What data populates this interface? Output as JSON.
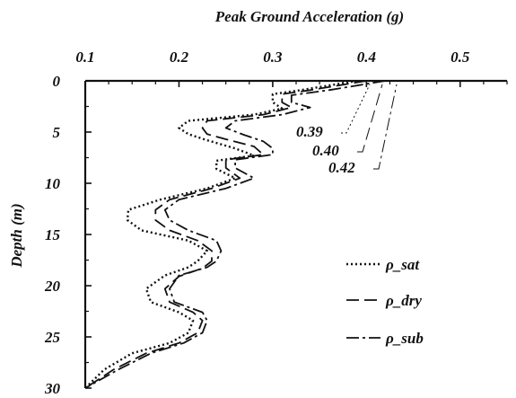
{
  "chart_data": {
    "type": "line",
    "title": "Peak Ground Acceleration  (g)",
    "xlabel": "Peak Ground Acceleration  (g)",
    "ylabel": "Depth (m)",
    "xlim": [
      0.1,
      0.55
    ],
    "ylim": [
      0,
      30
    ],
    "y_inverted": true,
    "x_axis_position": "top",
    "x_ticks": [
      "0.1",
      "0.2",
      "0.3",
      "0.4",
      "0.5"
    ],
    "x_tick_values": [
      0.1,
      0.2,
      0.3,
      0.4,
      0.5
    ],
    "y_ticks": [
      "0",
      "5",
      "10",
      "15",
      "20",
      "25",
      "30"
    ],
    "y_tick_values": [
      0,
      5,
      10,
      15,
      20,
      25,
      30
    ],
    "grid": false,
    "legend_position": "right",
    "series": [
      {
        "name": "ρ_sat",
        "style": "dotted",
        "color": "#111111",
        "points": [
          [
            0.39,
            0
          ],
          [
            0.33,
            0.9
          ],
          [
            0.3,
            1.3
          ],
          [
            0.3,
            2.1
          ],
          [
            0.31,
            2.7
          ],
          [
            0.28,
            3.3
          ],
          [
            0.21,
            3.9
          ],
          [
            0.2,
            4.6
          ],
          [
            0.21,
            5.2
          ],
          [
            0.23,
            5.8
          ],
          [
            0.26,
            6.6
          ],
          [
            0.28,
            7.3
          ],
          [
            0.24,
            7.8
          ],
          [
            0.24,
            8.6
          ],
          [
            0.26,
            9.5
          ],
          [
            0.23,
            10.5
          ],
          [
            0.18,
            11.6
          ],
          [
            0.146,
            12.6
          ],
          [
            0.145,
            13.6
          ],
          [
            0.16,
            14.6
          ],
          [
            0.21,
            15.6
          ],
          [
            0.23,
            16.6
          ],
          [
            0.22,
            17.6
          ],
          [
            0.21,
            18.2
          ],
          [
            0.185,
            19.0
          ],
          [
            0.165,
            20.3
          ],
          [
            0.17,
            21.6
          ],
          [
            0.2,
            22.6
          ],
          [
            0.215,
            23.4
          ],
          [
            0.21,
            24.6
          ],
          [
            0.19,
            25.6
          ],
          [
            0.15,
            26.6
          ],
          [
            0.12,
            28.2
          ],
          [
            0.1,
            30
          ]
        ]
      },
      {
        "name": "ρ_dry",
        "style": "dashed",
        "color": "#111111",
        "points": [
          [
            0.4,
            0
          ],
          [
            0.34,
            0.9
          ],
          [
            0.31,
            1.3
          ],
          [
            0.31,
            2.1
          ],
          [
            0.32,
            2.6
          ],
          [
            0.29,
            3.3
          ],
          [
            0.23,
            3.9
          ],
          [
            0.225,
            4.6
          ],
          [
            0.23,
            5.2
          ],
          [
            0.25,
            5.7
          ],
          [
            0.28,
            6.4
          ],
          [
            0.29,
            7.2
          ],
          [
            0.25,
            7.7
          ],
          [
            0.25,
            8.5
          ],
          [
            0.265,
            9.5
          ],
          [
            0.235,
            10.5
          ],
          [
            0.19,
            11.6
          ],
          [
            0.175,
            12.6
          ],
          [
            0.175,
            13.6
          ],
          [
            0.19,
            14.6
          ],
          [
            0.22,
            15.6
          ],
          [
            0.235,
            16.6
          ],
          [
            0.235,
            17.6
          ],
          [
            0.225,
            18.3
          ],
          [
            0.2,
            19.1
          ],
          [
            0.185,
            20.3
          ],
          [
            0.19,
            21.6
          ],
          [
            0.215,
            22.6
          ],
          [
            0.225,
            23.4
          ],
          [
            0.22,
            24.6
          ],
          [
            0.2,
            25.6
          ],
          [
            0.165,
            26.6
          ],
          [
            0.13,
            28.2
          ],
          [
            0.1,
            30
          ]
        ]
      },
      {
        "name": "ρ_sub",
        "style": "dash-dot",
        "color": "#111111",
        "points": [
          [
            0.42,
            0
          ],
          [
            0.36,
            0.9
          ],
          [
            0.32,
            1.4
          ],
          [
            0.32,
            2.1
          ],
          [
            0.34,
            2.6
          ],
          [
            0.31,
            3.3
          ],
          [
            0.26,
            3.9
          ],
          [
            0.25,
            4.6
          ],
          [
            0.27,
            5.3
          ],
          [
            0.29,
            5.9
          ],
          [
            0.3,
            6.6
          ],
          [
            0.3,
            7.2
          ],
          [
            0.26,
            7.7
          ],
          [
            0.26,
            8.5
          ],
          [
            0.28,
            9.5
          ],
          [
            0.25,
            10.5
          ],
          [
            0.2,
            11.6
          ],
          [
            0.185,
            12.6
          ],
          [
            0.19,
            13.6
          ],
          [
            0.21,
            14.6
          ],
          [
            0.24,
            15.6
          ],
          [
            0.245,
            16.6
          ],
          [
            0.24,
            17.6
          ],
          [
            0.23,
            18.2
          ],
          [
            0.2,
            19.0
          ],
          [
            0.19,
            20.3
          ],
          [
            0.195,
            21.6
          ],
          [
            0.225,
            22.6
          ],
          [
            0.23,
            23.4
          ],
          [
            0.225,
            24.6
          ],
          [
            0.205,
            25.6
          ],
          [
            0.17,
            26.6
          ],
          [
            0.135,
            28.2
          ],
          [
            0.1,
            30
          ]
        ]
      }
    ],
    "annotations": [
      {
        "text": "0.39",
        "series": "ρ_sat",
        "value_x": 0.39,
        "value_y": 0
      },
      {
        "text": "0.40",
        "series": "ρ_dry",
        "value_x": 0.4,
        "value_y": 0
      },
      {
        "text": "0.42",
        "series": "ρ_sub",
        "value_x": 0.42,
        "value_y": 0
      }
    ]
  }
}
